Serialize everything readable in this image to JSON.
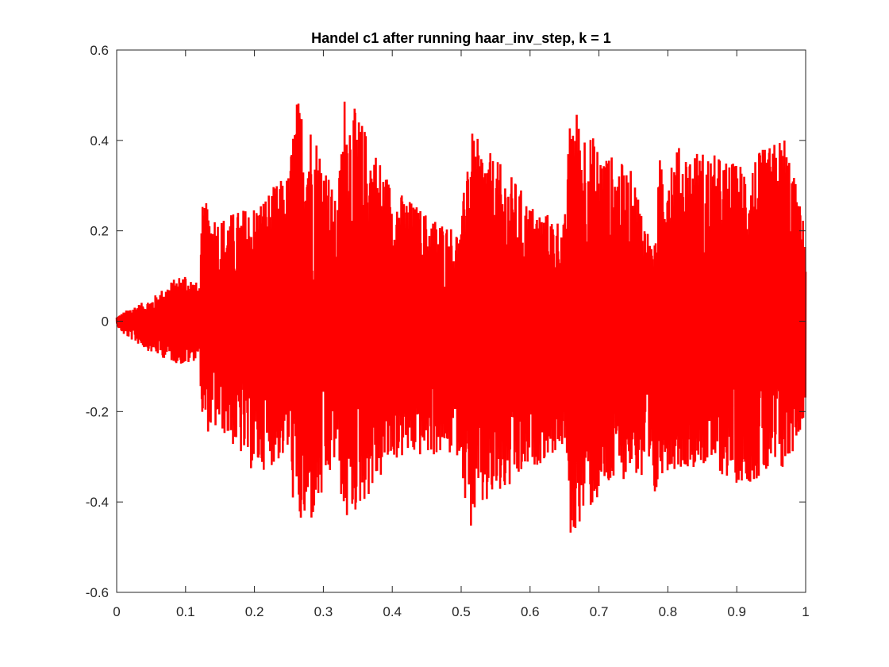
{
  "chart_data": {
    "type": "line",
    "title": "Handel c1 after running haar_inv_step, k = 1",
    "xlabel": "",
    "ylabel": "",
    "xlim": [
      0,
      1
    ],
    "ylim": [
      -0.6,
      0.6
    ],
    "x_ticks": [
      0,
      0.1,
      0.2,
      0.3,
      0.4,
      0.5,
      0.6,
      0.7,
      0.8,
      0.9,
      1
    ],
    "x_tick_labels": [
      "0",
      "0.1",
      "0.2",
      "0.3",
      "0.4",
      "0.5",
      "0.6",
      "0.7",
      "0.8",
      "0.9",
      "1"
    ],
    "y_ticks": [
      -0.6,
      -0.4,
      -0.2,
      0,
      0.2,
      0.4,
      0.6
    ],
    "y_tick_labels": [
      "-0.6",
      "-0.4",
      "-0.2",
      "0",
      "0.2",
      "0.4",
      "0.6"
    ],
    "grid": false,
    "line_color": "#ff0000",
    "series": [
      {
        "style": "dense oscillating waveform",
        "envelope": {
          "x": [
            0,
            0.01,
            0.02,
            0.05,
            0.08,
            0.1,
            0.12,
            0.125,
            0.15,
            0.2,
            0.25,
            0.26,
            0.28,
            0.3,
            0.32,
            0.33,
            0.35,
            0.38,
            0.4,
            0.45,
            0.5,
            0.51,
            0.52,
            0.55,
            0.58,
            0.6,
            0.65,
            0.66,
            0.67,
            0.7,
            0.75,
            0.78,
            0.79,
            0.8,
            0.85,
            0.9,
            0.95,
            0.97,
            1.0
          ],
          "upper": [
            0.01,
            0.02,
            0.03,
            0.05,
            0.09,
            0.11,
            0.08,
            0.27,
            0.23,
            0.26,
            0.33,
            0.5,
            0.45,
            0.38,
            0.25,
            0.51,
            0.46,
            0.37,
            0.3,
            0.24,
            0.2,
            0.43,
            0.41,
            0.36,
            0.31,
            0.26,
            0.22,
            0.51,
            0.46,
            0.39,
            0.33,
            0.15,
            0.4,
            0.39,
            0.38,
            0.35,
            0.39,
            0.42,
            0.2
          ],
          "lower": [
            -0.01,
            -0.03,
            -0.04,
            -0.07,
            -0.09,
            -0.1,
            -0.08,
            -0.25,
            -0.24,
            -0.34,
            -0.3,
            -0.47,
            -0.46,
            -0.4,
            -0.3,
            -0.46,
            -0.42,
            -0.36,
            -0.31,
            -0.3,
            -0.3,
            -0.48,
            -0.44,
            -0.4,
            -0.37,
            -0.33,
            -0.28,
            -0.51,
            -0.45,
            -0.4,
            -0.33,
            -0.43,
            -0.34,
            -0.33,
            -0.32,
            -0.36,
            -0.35,
            -0.34,
            -0.21
          ]
        }
      }
    ]
  }
}
